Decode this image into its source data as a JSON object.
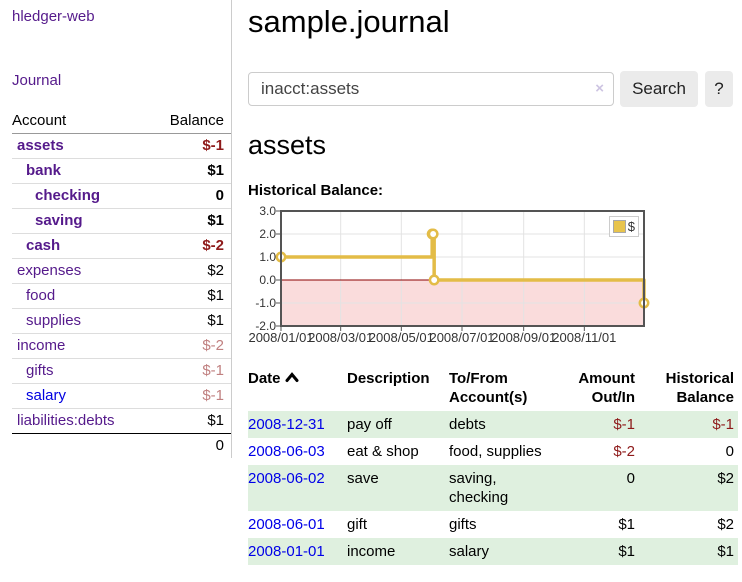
{
  "sidebar": {
    "app_title": "hledger-web",
    "nav_journal": "Journal",
    "accounts_table": {
      "headers": {
        "account": "Account",
        "balance": "Balance"
      },
      "rows": [
        {
          "name": "assets",
          "balance": "$-1",
          "indent": 1,
          "bold": true,
          "neg": "strong",
          "link": "purple"
        },
        {
          "name": "bank",
          "balance": "$1",
          "indent": 2,
          "bold": true,
          "neg": "none",
          "link": "purple"
        },
        {
          "name": "checking",
          "balance": "0",
          "indent": 3,
          "bold": true,
          "neg": "none",
          "link": "purple"
        },
        {
          "name": "saving",
          "balance": "$1",
          "indent": 3,
          "bold": true,
          "neg": "none",
          "link": "purple"
        },
        {
          "name": "cash",
          "balance": "$-2",
          "indent": 2,
          "bold": true,
          "neg": "strong",
          "link": "purple"
        },
        {
          "name": "expenses",
          "balance": "$2",
          "indent": 1,
          "bold": false,
          "neg": "none",
          "link": "purple"
        },
        {
          "name": "food",
          "balance": "$1",
          "indent": 2,
          "bold": false,
          "neg": "none",
          "link": "purple"
        },
        {
          "name": "supplies",
          "balance": "$1",
          "indent": 2,
          "bold": false,
          "neg": "none",
          "link": "purple"
        },
        {
          "name": "income",
          "balance": "$-2",
          "indent": 1,
          "bold": false,
          "neg": "muted",
          "link": "purple"
        },
        {
          "name": "gifts",
          "balance": "$-1",
          "indent": 2,
          "bold": false,
          "neg": "muted",
          "link": "purple"
        },
        {
          "name": "salary",
          "balance": "$-1",
          "indent": 2,
          "bold": false,
          "neg": "muted",
          "link": "blue"
        },
        {
          "name": "liabilities:debts",
          "balance": "$1",
          "indent": 1,
          "bold": false,
          "neg": "none",
          "link": "purple"
        }
      ],
      "total": "0"
    }
  },
  "header": {
    "title": "sample.journal"
  },
  "search": {
    "query": "inacct:assets",
    "clear_icon": "×",
    "search_button": "Search",
    "help_button": "?"
  },
  "account_page": {
    "heading": "assets",
    "chart_title": "Historical Balance:"
  },
  "chart_data": {
    "type": "line",
    "step": true,
    "title": "Historical Balance",
    "series": [
      {
        "name": "$",
        "color": "#e3bc47",
        "points": [
          [
            "2008-01-01",
            1
          ],
          [
            "2008-06-01",
            2
          ],
          [
            "2008-06-02",
            2
          ],
          [
            "2008-06-03",
            0
          ],
          [
            "2008-12-31",
            -1
          ]
        ]
      }
    ],
    "x_ticks": [
      "2008/01/01",
      "2008/03/01",
      "2008/05/01",
      "2008/07/01",
      "2008/09/01",
      "2008/11/01"
    ],
    "y_ticks": [
      "3.0",
      "2.0",
      "1.0",
      "0.0",
      "-1.0",
      "-2.0"
    ],
    "ylim": [
      -2,
      3
    ],
    "x_range_days": 365,
    "grid": true,
    "legend_position": "top-right",
    "legend_label": "$",
    "colors": {
      "line": "#e3bc47",
      "negative_fill": "#fadcdc",
      "zero_line": "#8b0000",
      "grid": "#e3e3e3",
      "border": "#545454"
    }
  },
  "transactions": {
    "headers": {
      "date": "Date",
      "description": "Description",
      "accounts": "To/From Account(s)",
      "amount": "Amount Out/In",
      "balance": "Historical Balance"
    },
    "rows": [
      {
        "date": "2008-12-31",
        "description": "pay off",
        "accounts": "debts",
        "amount": "$-1",
        "balance": "$-1",
        "amount_neg": true,
        "balance_neg": true
      },
      {
        "date": "2008-06-03",
        "description": "eat & shop",
        "accounts": "food, supplies",
        "amount": "$-2",
        "balance": "0",
        "amount_neg": true,
        "balance_neg": false
      },
      {
        "date": "2008-06-02",
        "description": "save",
        "accounts": "saving, checking",
        "amount": "0",
        "balance": "$2",
        "amount_neg": false,
        "balance_neg": false
      },
      {
        "date": "2008-06-01",
        "description": "gift",
        "accounts": "gifts",
        "amount": "$1",
        "balance": "$2",
        "amount_neg": false,
        "balance_neg": false
      },
      {
        "date": "2008-01-01",
        "description": "income",
        "accounts": "salary",
        "amount": "$1",
        "balance": "$1",
        "amount_neg": false,
        "balance_neg": false
      }
    ]
  }
}
